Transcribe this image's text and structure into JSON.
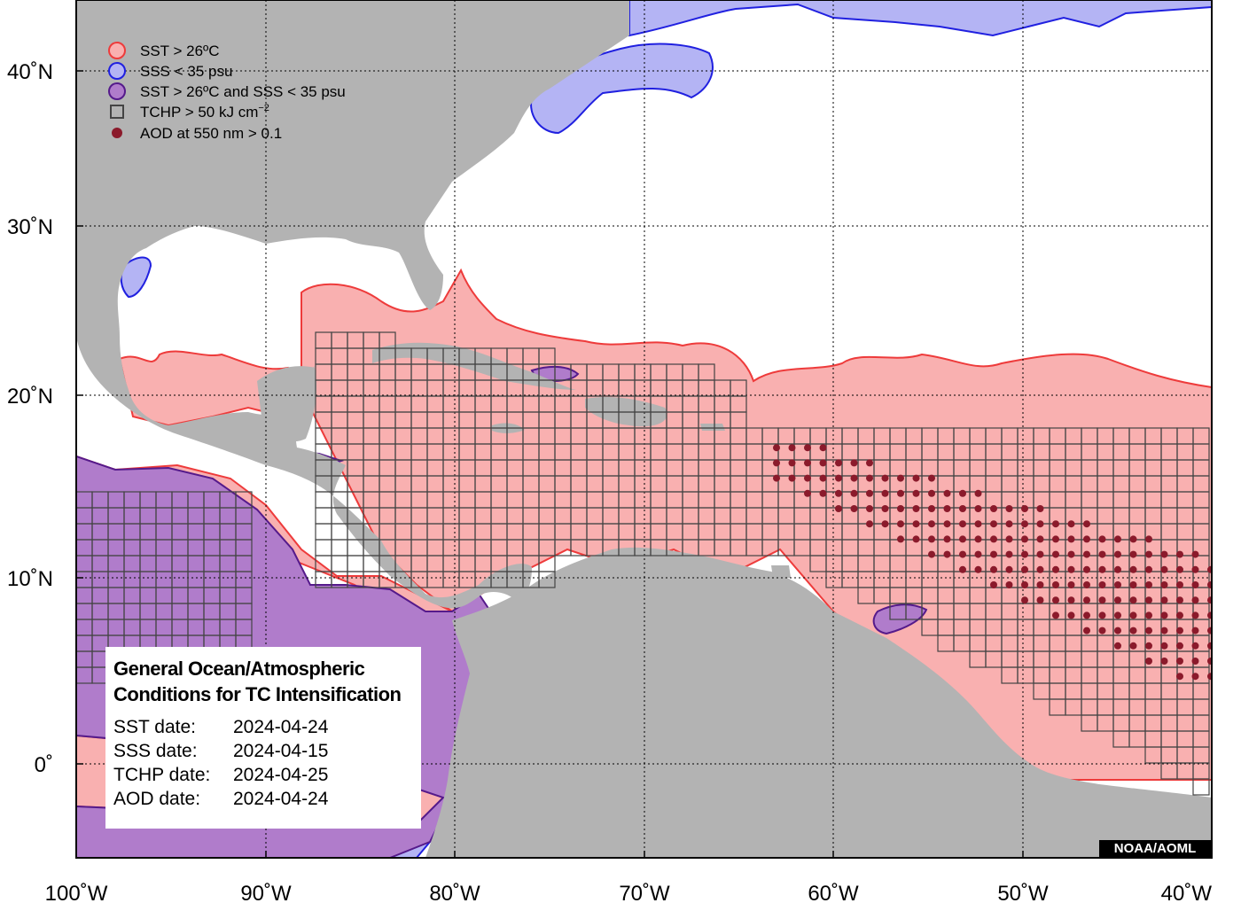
{
  "map": {
    "colors": {
      "land": "#b3b3b3",
      "ocean": "#ffffff",
      "sst_fill": "#f9b0b0",
      "sst_line": "#ee3b3b",
      "sss_fill": "#b4b4f4",
      "sss_line": "#2020e0",
      "both_fill": "#b07ccb",
      "both_line": "#551a8b",
      "tchp_box": "#444444",
      "aod_dot": "#8b1a2b"
    },
    "x_axis_labels": [
      "100˚W",
      "90˚W",
      "80˚W",
      "70˚W",
      "60˚W",
      "50˚W",
      "40˚W"
    ],
    "y_axis_labels": [
      "40˚N",
      "30˚N",
      "20˚N",
      "10˚N",
      "0˚"
    ],
    "lon_range": [
      -100,
      -40
    ],
    "lat_range": [
      -5,
      44
    ]
  },
  "legend": {
    "items": [
      {
        "label": "SST > 26ºC",
        "icon": "circle-red"
      },
      {
        "label": "SSS < 35 psu",
        "icon": "circle-blue"
      },
      {
        "label": "SST > 26ºC and SSS < 35 psu",
        "icon": "circle-purple"
      },
      {
        "label": "TCHP > 50 kJ cm",
        "sup": "−2",
        "icon": "square-outline"
      },
      {
        "label": "AOD at 550 nm > 0.1",
        "icon": "dot-darkred"
      }
    ]
  },
  "info": {
    "title_line1": "General Ocean/Atmospheric",
    "title_line2": "Conditions for TC Intensification",
    "rows": [
      {
        "label": "SST date:",
        "value": "2024-04-24"
      },
      {
        "label": "SSS date:",
        "value": "2024-04-15"
      },
      {
        "label": "TCHP date:",
        "value": "2024-04-25"
      },
      {
        "label": "AOD date:",
        "value": "2024-04-24"
      }
    ]
  },
  "credit": "NOAA/AOML"
}
